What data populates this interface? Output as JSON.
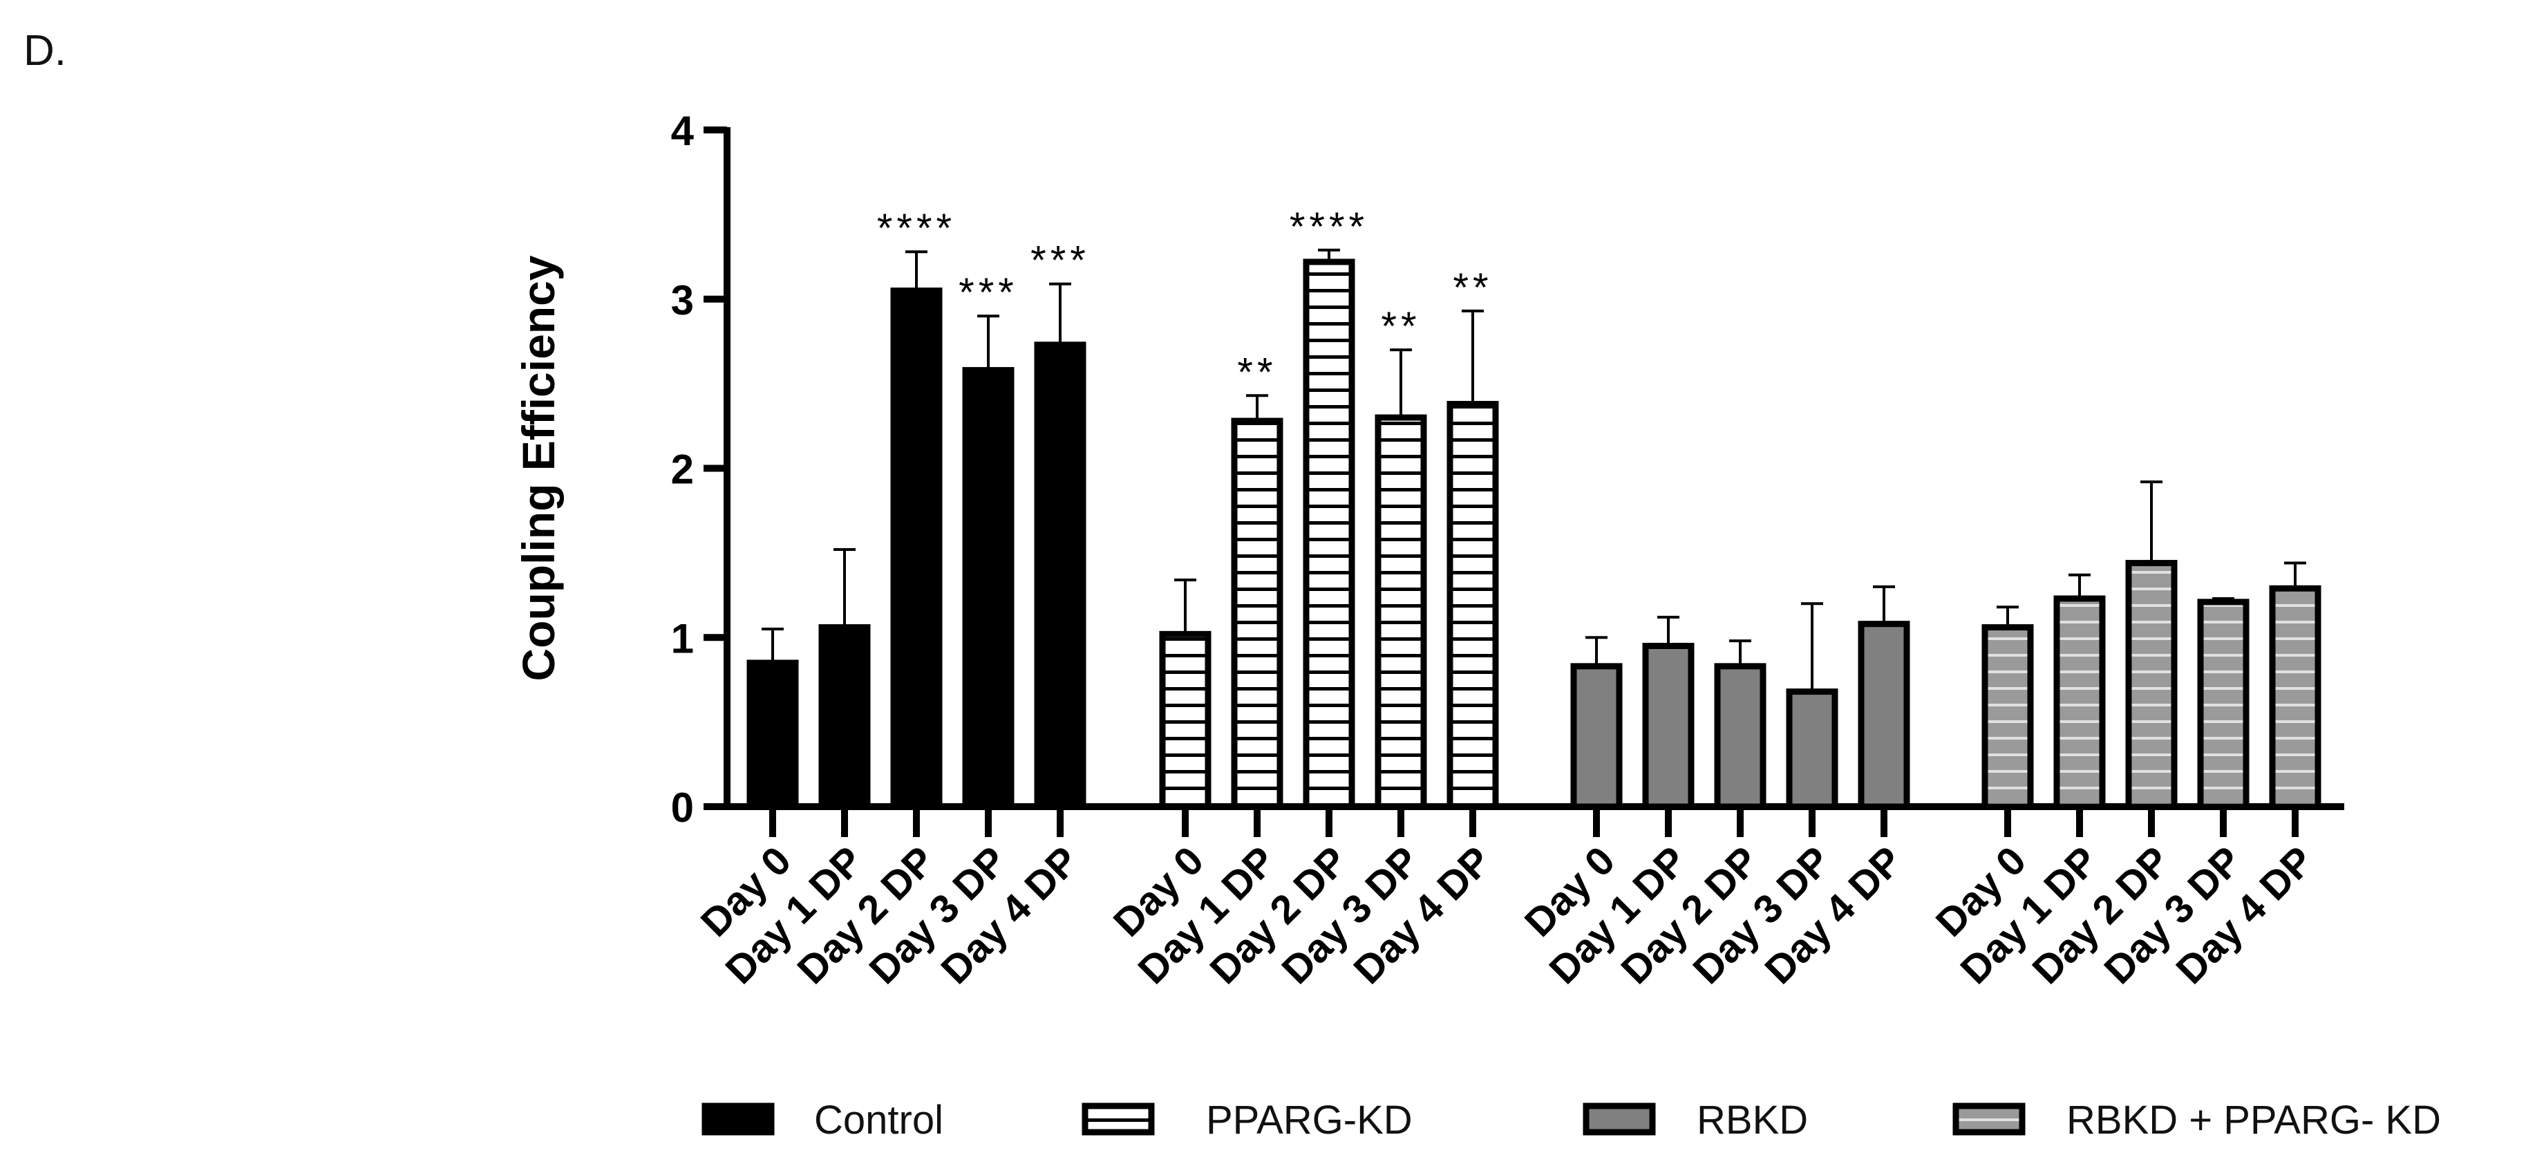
{
  "panel_label": "D.",
  "chart_data": {
    "type": "bar",
    "ylabel": "Coupling Efficiency",
    "xlabel": "",
    "ylim": [
      0,
      4
    ],
    "yticks": [
      0,
      1,
      2,
      3,
      4
    ],
    "categories": [
      "Day 0",
      "Day 1 DP",
      "Day 2 DP",
      "Day 3 DP",
      "Day 4 DP"
    ],
    "legend_position": "bottom",
    "series": [
      {
        "name": "Control",
        "fill": "solid",
        "color": "#000000",
        "values": [
          0.85,
          1.06,
          3.05,
          2.58,
          2.73
        ],
        "errors": [
          0.2,
          0.46,
          0.23,
          0.32,
          0.36
        ],
        "significance": [
          "",
          "",
          "****",
          "***",
          "***"
        ]
      },
      {
        "name": "PPARG-KD",
        "fill": "white-striped",
        "color": "#ffffff",
        "values": [
          1.02,
          2.28,
          3.22,
          2.3,
          2.38
        ],
        "errors": [
          0.32,
          0.15,
          0.07,
          0.4,
          0.55
        ],
        "significance": [
          "",
          "**",
          "****",
          "**",
          "**"
        ]
      },
      {
        "name": "RBKD",
        "fill": "grey-solid",
        "color": "#808080",
        "values": [
          0.83,
          0.95,
          0.83,
          0.68,
          1.08
        ],
        "errors": [
          0.17,
          0.17,
          0.15,
          0.52,
          0.22
        ],
        "significance": [
          "",
          "",
          "",
          "",
          ""
        ]
      },
      {
        "name": "RBKD + PPARG- KD",
        "fill": "grey-striped",
        "color": "#9a9a9a",
        "values": [
          1.06,
          1.23,
          1.44,
          1.21,
          1.29
        ],
        "errors": [
          0.12,
          0.14,
          0.48,
          0.02,
          0.15
        ],
        "significance": [
          "",
          "",
          "",
          "",
          ""
        ]
      }
    ]
  }
}
